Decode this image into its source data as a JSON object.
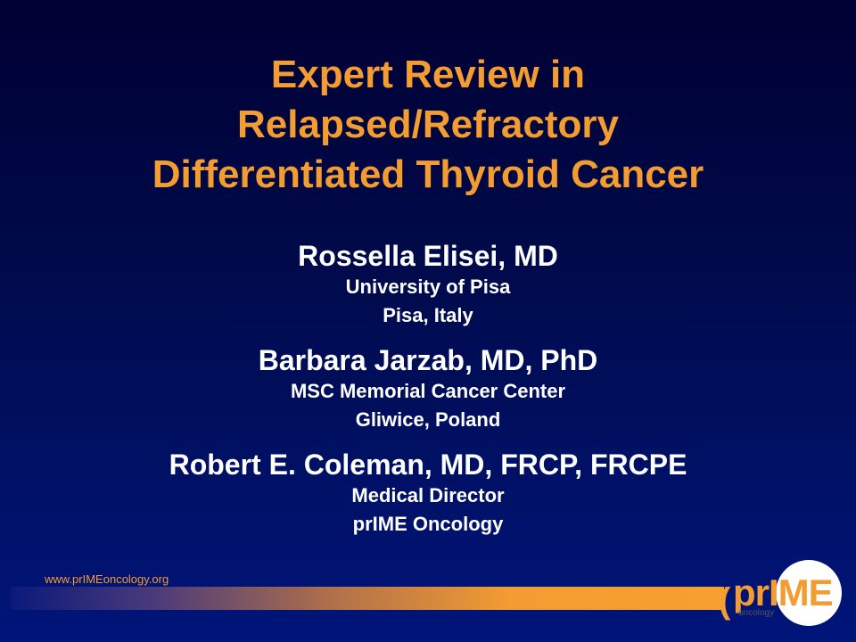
{
  "slide": {
    "title_lines": [
      "Expert Review in",
      "Relapsed/Refractory",
      "Differentiated Thyroid Cancer"
    ],
    "presenters": [
      {
        "name": "Rossella Elisei, MD",
        "lines": [
          "University of Pisa",
          "Pisa, Italy"
        ]
      },
      {
        "name": "Barbara Jarzab, MD, PhD",
        "lines": [
          "MSC Memorial Cancer Center",
          "Gliwice, Poland"
        ]
      },
      {
        "name": "Robert E. Coleman, MD, FRCP, FRCPE",
        "lines": [
          "Medical Director",
          "prIME Oncology"
        ]
      }
    ],
    "footer_url": "www.prIMEoncology.org",
    "logo": {
      "bracket": "(",
      "word_pr": "pr",
      "word_me": "IME",
      "sub": "oncology"
    },
    "colors": {
      "title": "#f39c31",
      "text": "#ffffff",
      "background": "#000a4a",
      "accent": "#f39c31"
    }
  }
}
